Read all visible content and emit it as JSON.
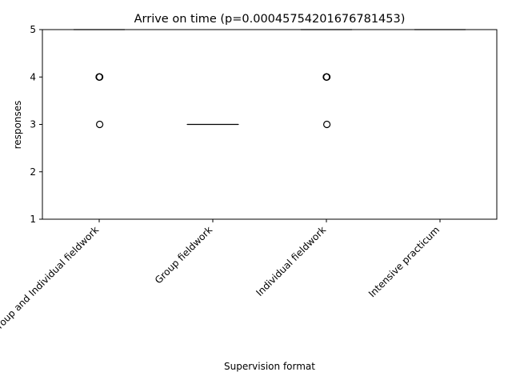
{
  "chart_data": {
    "type": "boxplot",
    "title": "Arrive on time (p=0.00045754201676781453)",
    "xlabel": "Supervision format",
    "ylabel": "responses",
    "ylim": [
      1,
      5
    ],
    "yticks": [
      1,
      2,
      3,
      4,
      5
    ],
    "categories": [
      "Group and Individual fieldwork",
      "Group fieldwork",
      "Individual fieldwork",
      "Intensive practicum"
    ],
    "boxes": [
      {
        "category": "Group and Individual fieldwork",
        "q1": 5,
        "median": 5,
        "q3": 5,
        "whisker_low": 5,
        "whisker_high": 5,
        "outliers": [
          4,
          4,
          4,
          3
        ]
      },
      {
        "category": "Group fieldwork",
        "q1": 3,
        "median": 3,
        "q3": 3,
        "whisker_low": 3,
        "whisker_high": 3,
        "outliers": []
      },
      {
        "category": "Individual fieldwork",
        "q1": 5,
        "median": 5,
        "q3": 5,
        "whisker_low": 5,
        "whisker_high": 5,
        "outliers": [
          4,
          4,
          4,
          3
        ]
      },
      {
        "category": "Intensive practicum",
        "q1": 5,
        "median": 5,
        "q3": 5,
        "whisker_low": 5,
        "whisker_high": 5,
        "outliers": []
      }
    ],
    "grid": false,
    "colors": {
      "box": "#000000",
      "median": "#000000",
      "outlier_edge": "#000000"
    }
  }
}
